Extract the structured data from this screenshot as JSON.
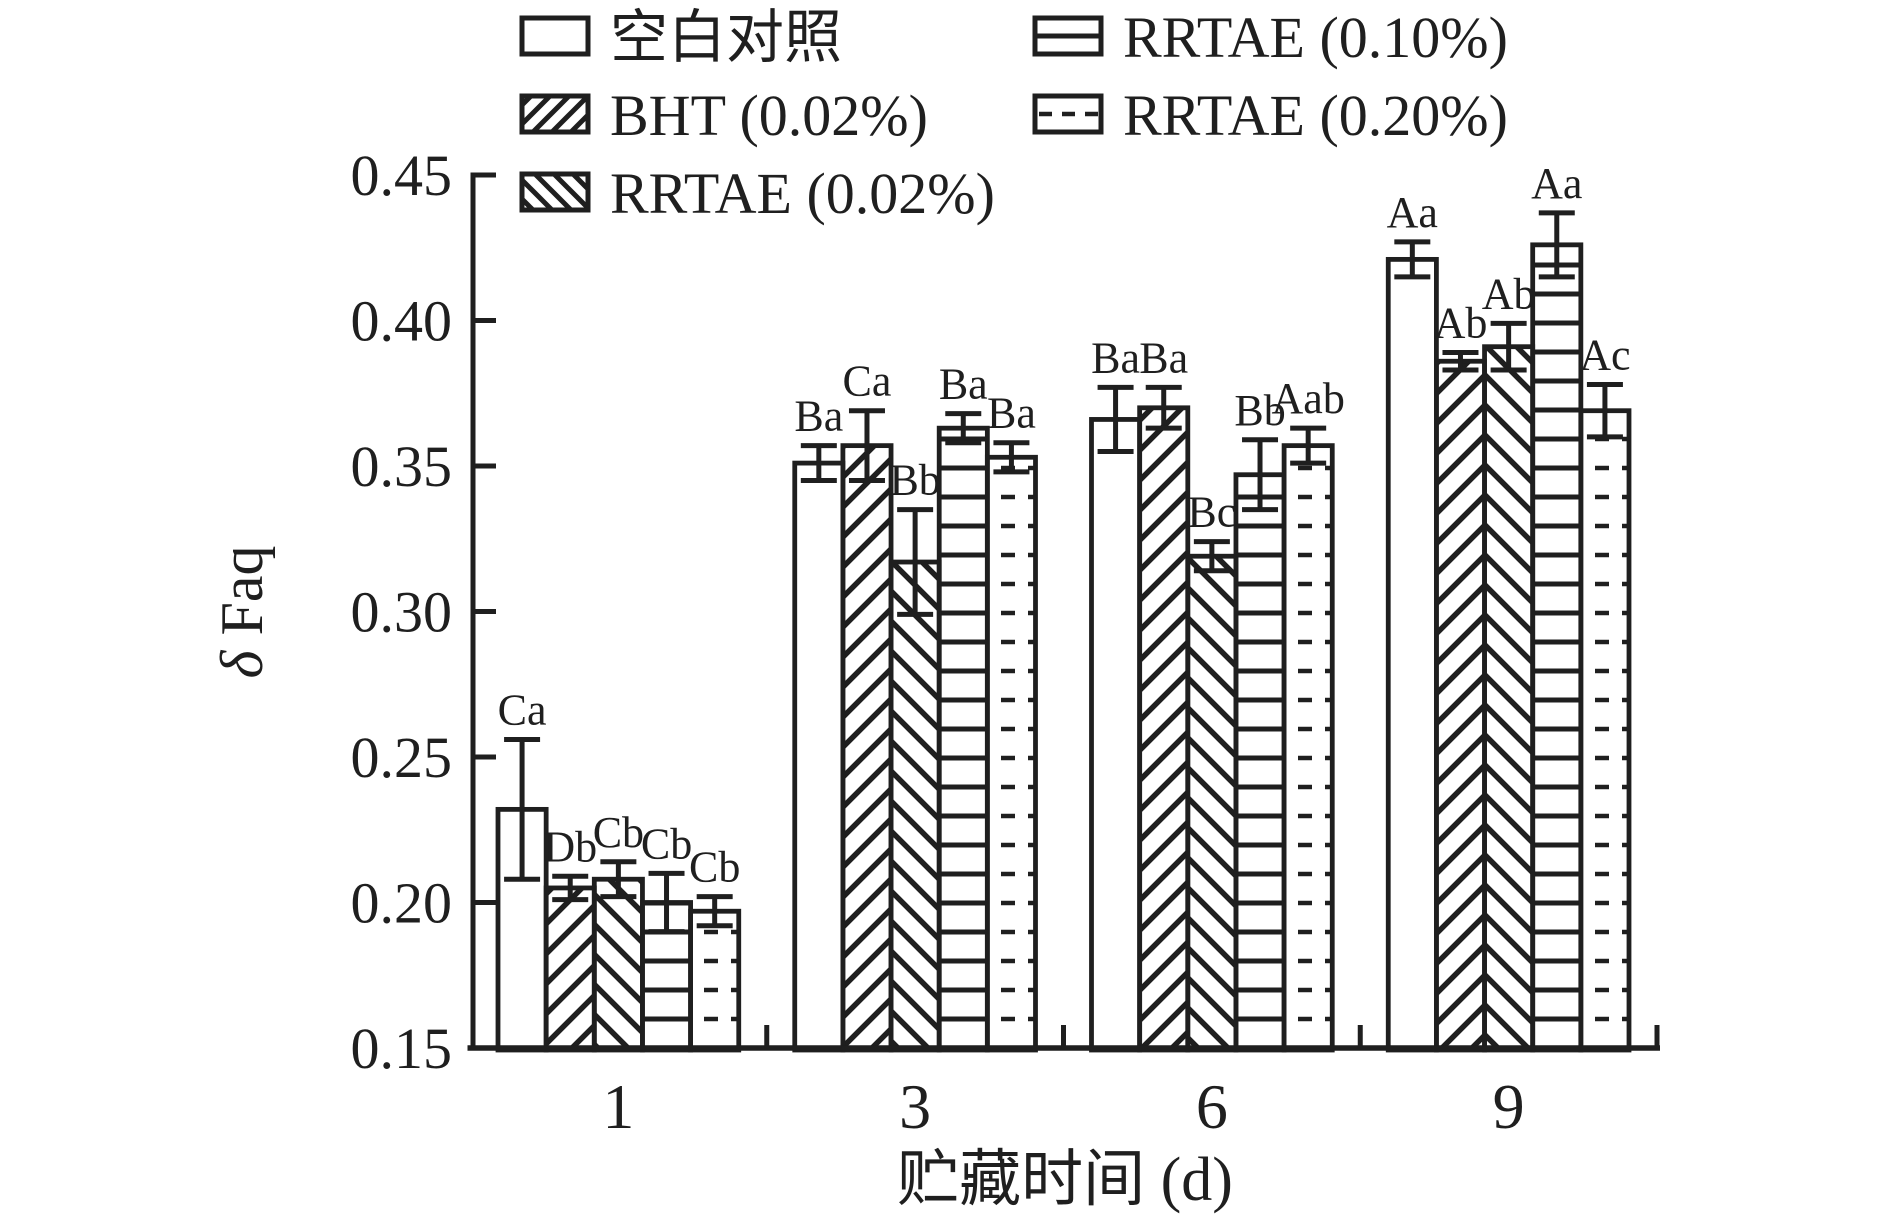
{
  "figure": {
    "background": "#ffffff",
    "ink_color": "#1f1f1f"
  },
  "chart_data": {
    "type": "bar",
    "title": "",
    "xlabel": "贮藏时间 (d)",
    "ylabel": "δ Faq",
    "ylabel_italic_part": "δ",
    "ylabel_regular_part": " Faq",
    "categories": [
      "1",
      "3",
      "6",
      "9"
    ],
    "ylim": [
      0.15,
      0.45
    ],
    "ytick_step": 0.05,
    "ytick_labels": [
      "0.15",
      "0.20",
      "0.25",
      "0.30",
      "0.35",
      "0.40",
      "0.45"
    ],
    "grid": false,
    "legend_position": "top",
    "error_bars": true,
    "series": [
      {
        "name": "空白对照",
        "pattern": "none",
        "values": [
          0.232,
          0.351,
          0.366,
          0.421
        ],
        "errors": [
          0.024,
          0.006,
          0.011,
          0.006
        ],
        "sig_labels": [
          "Ca",
          "Ba",
          "Ba",
          "Aa"
        ]
      },
      {
        "name": "BHT (0.02%)",
        "pattern": "diag-up",
        "values": [
          0.205,
          0.357,
          0.37,
          0.386
        ],
        "errors": [
          0.004,
          0.012,
          0.007,
          0.003
        ],
        "sig_labels": [
          "Db",
          "Ca",
          "Ba",
          "Ab"
        ]
      },
      {
        "name": "RRTAE (0.02%)",
        "pattern": "diag-down",
        "values": [
          0.208,
          0.317,
          0.319,
          0.391
        ],
        "errors": [
          0.006,
          0.018,
          0.005,
          0.008
        ],
        "sig_labels": [
          "Cb",
          "Bb",
          "Bc",
          "Ab"
        ]
      },
      {
        "name": "RRTAE (0.10%)",
        "pattern": "horiz",
        "values": [
          0.2,
          0.363,
          0.347,
          0.426
        ],
        "errors": [
          0.01,
          0.005,
          0.012,
          0.011
        ],
        "sig_labels": [
          "Cb",
          "Ba",
          "Bb",
          "Aa"
        ]
      },
      {
        "name": "RRTAE (0.20%)",
        "pattern": "horiz-dash",
        "values": [
          0.197,
          0.353,
          0.357,
          0.369
        ],
        "errors": [
          0.005,
          0.005,
          0.006,
          0.009
        ],
        "sig_labels": [
          "Cb",
          "Ba",
          "Aab",
          "Ac"
        ]
      }
    ]
  }
}
